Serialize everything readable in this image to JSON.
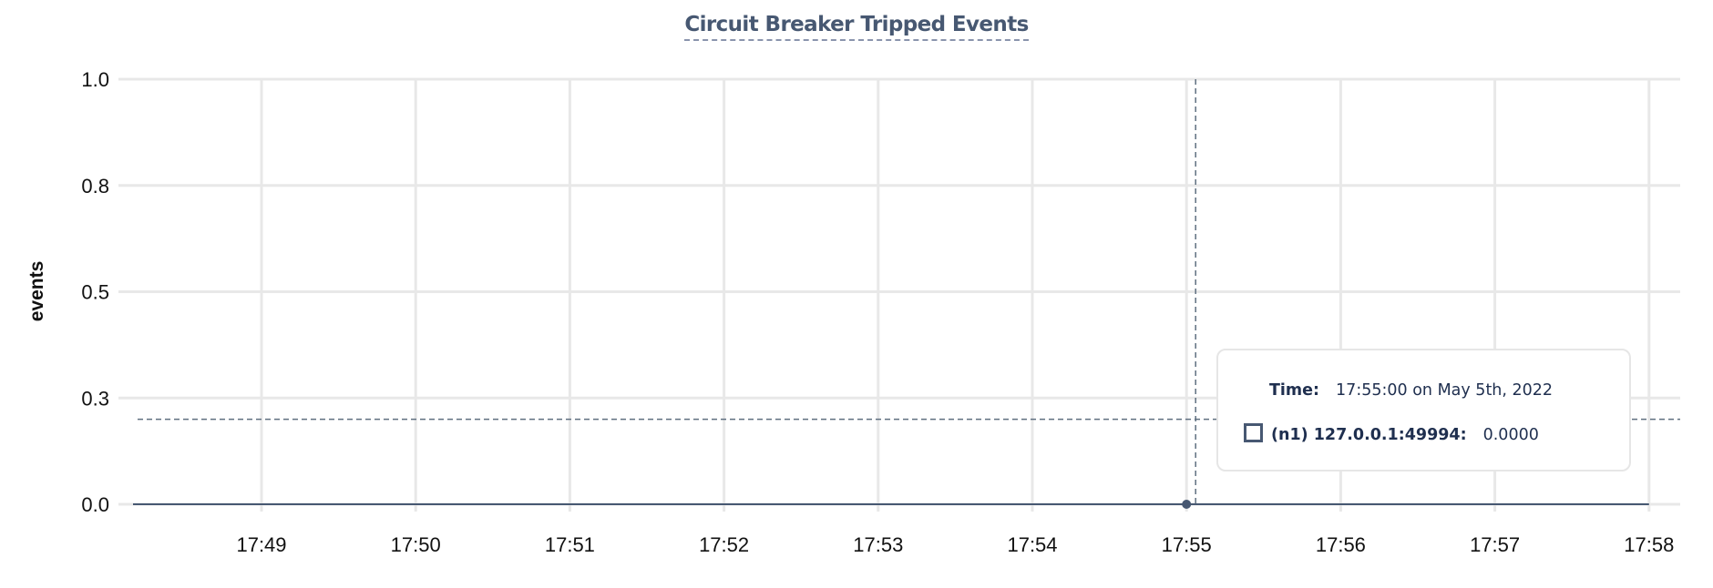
{
  "chart_data": {
    "type": "line",
    "title": "Circuit Breaker Tripped Events",
    "ylabel": "events",
    "xlabel": "",
    "ylim": [
      0,
      1
    ],
    "y_ticks": [
      0,
      0.25,
      0.5,
      0.75,
      1.0
    ],
    "y_tick_labels": [
      "0.0",
      "0.3",
      "0.5",
      "0.8",
      "1.0"
    ],
    "x_tick_labels": [
      "17:49",
      "17:50",
      "17:51",
      "17:52",
      "17:53",
      "17:54",
      "17:55",
      "17:56",
      "17:57",
      "17:58"
    ],
    "grid": true,
    "series": [
      {
        "name": "(n1) 127.0.0.1:49994",
        "color": "#475872",
        "x": [
          "17:48:10",
          "17:49:00",
          "17:50:00",
          "17:51:00",
          "17:52:00",
          "17:53:00",
          "17:54:00",
          "17:55:00",
          "17:56:00",
          "17:57:00",
          "17:58:00"
        ],
        "y": [
          0,
          0,
          0,
          0,
          0,
          0,
          0,
          0,
          0,
          0,
          0
        ]
      }
    ],
    "hover": {
      "x": "17:55:00",
      "y_cursor": 0.2
    }
  },
  "tooltip": {
    "time_label": "Time:",
    "time_value": "17:55:00 on May 5th, 2022",
    "series_label": "(n1) 127.0.0.1:49994:",
    "series_value": "0.0000"
  }
}
